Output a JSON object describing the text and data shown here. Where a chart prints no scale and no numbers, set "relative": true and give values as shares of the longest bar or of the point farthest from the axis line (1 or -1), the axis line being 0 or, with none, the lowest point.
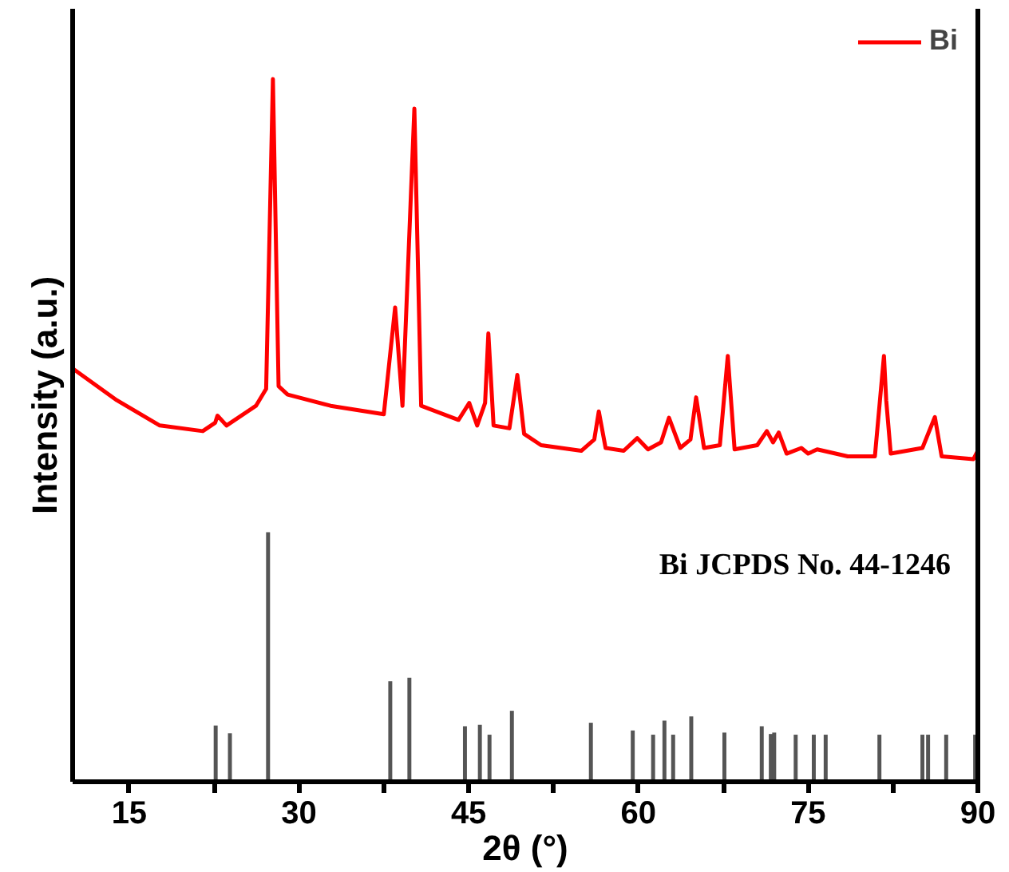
{
  "chart_data": {
    "type": "line",
    "relative": true,
    "xlabel": "2θ (°)",
    "ylabel": "Intensity (a.u.)",
    "xlim": [
      10,
      90
    ],
    "xticks": [
      15,
      {
        "value": 22.5,
        "label": null
      },
      30,
      {
        "value": 37.5,
        "label": null
      },
      45,
      {
        "value": 52.5,
        "label": null
      },
      60,
      {
        "value": 67.5,
        "label": null
      },
      75,
      {
        "value": 82.5,
        "label": null
      },
      90
    ],
    "tick_labels": "x",
    "grid": false,
    "legend": "top right",
    "marker": "none",
    "line_style": "solid",
    "annotations": [
      "Bi JCPDS No. 44-1246"
    ],
    "series": [
      {
        "name": "Bi",
        "color": "#ff0000",
        "x": [
          10.1,
          13.9,
          17.7,
          21.5,
          22.6,
          22.8,
          23.6,
          26.2,
          27.1,
          27.7,
          28.2,
          29.0,
          32.8,
          37.5,
          38.5,
          39.15,
          40.2,
          40.8,
          44.1,
          45.05,
          45.75,
          46.45,
          46.74,
          47.2,
          48.6,
          49.3,
          49.9,
          51.4,
          54.95,
          56.1,
          56.5,
          57.1,
          58.7,
          59.9,
          60.85,
          62.0,
          62.7,
          63.7,
          64.6,
          65.1,
          65.8,
          67.2,
          67.9,
          68.5,
          70.5,
          71.35,
          71.9,
          72.4,
          73.1,
          74.4,
          75.0,
          75.8,
          78.5,
          80.9,
          81.7,
          81.9,
          82.3,
          85.1,
          86.2,
          86.8,
          89.6,
          90.0
        ],
        "values": [
          0.587,
          0.543,
          0.507,
          0.499,
          0.511,
          0.521,
          0.507,
          0.535,
          0.559,
          1.0,
          0.563,
          0.551,
          0.535,
          0.523,
          0.675,
          0.535,
          0.958,
          0.535,
          0.515,
          0.539,
          0.507,
          0.539,
          0.638,
          0.507,
          0.503,
          0.579,
          0.495,
          0.479,
          0.471,
          0.487,
          0.527,
          0.475,
          0.471,
          0.489,
          0.473,
          0.483,
          0.518,
          0.475,
          0.487,
          0.547,
          0.475,
          0.479,
          0.606,
          0.473,
          0.479,
          0.499,
          0.483,
          0.497,
          0.467,
          0.475,
          0.467,
          0.473,
          0.463,
          0.463,
          0.606,
          0.543,
          0.467,
          0.475,
          0.519,
          0.463,
          0.459,
          0.471
        ]
      },
      {
        "type": "bar",
        "color": "#555555",
        "x": [
          22.64,
          23.9,
          27.27,
          38.07,
          39.76,
          44.67,
          45.99,
          46.84,
          48.82,
          55.8,
          59.5,
          61.3,
          62.3,
          63.07,
          64.67,
          67.6,
          70.9,
          71.7,
          72.0,
          73.9,
          75.5,
          76.55,
          81.3,
          85.1,
          85.6,
          87.2,
          89.76
        ],
        "values": [
          0.08,
          0.069,
          0.355,
          0.143,
          0.148,
          0.079,
          0.081,
          0.067,
          0.101,
          0.084,
          0.073,
          0.067,
          0.087,
          0.067,
          0.093,
          0.07,
          0.079,
          0.068,
          0.07,
          0.067,
          0.067,
          0.067,
          0.067,
          0.067,
          0.067,
          0.067,
          0.067
        ]
      }
    ]
  }
}
